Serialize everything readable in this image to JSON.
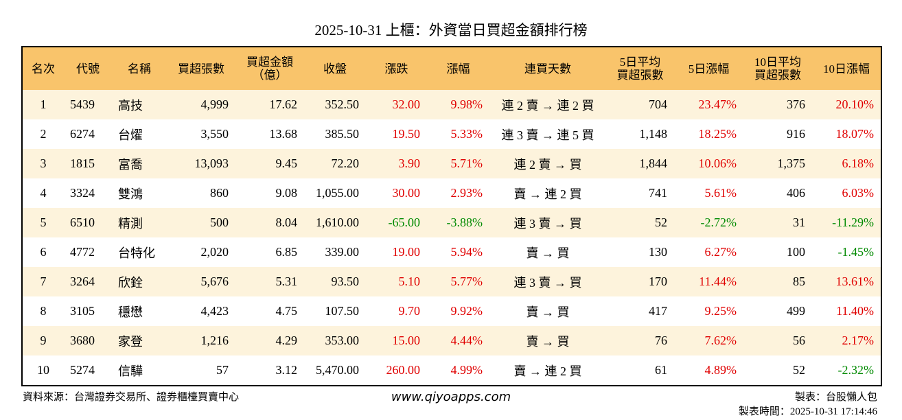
{
  "title": "2025-10-31 上櫃：外資當日買超金額排行榜",
  "colors": {
    "header": "#f9c46b",
    "stripe": "#fdf3dc",
    "up": "#e00000",
    "down": "#008a00"
  },
  "signed_columns": [
    6,
    7,
    10,
    12
  ],
  "table": {
    "headers": [
      "名次",
      "代號",
      "名稱",
      "買超張數",
      [
        "買超金額",
        "（億）"
      ],
      "收盤",
      "漲跌",
      "漲幅",
      "連買天數",
      [
        "5日平均",
        "買超張數"
      ],
      "5日漲幅",
      [
        "10日平均",
        "買超張數"
      ],
      "10日漲幅"
    ],
    "rows": [
      [
        "1",
        "5439",
        "高技",
        "4,999",
        "17.62",
        "352.50",
        "32.00",
        "9.98%",
        "連 2 賣 → 連 2 買",
        "704",
        "23.47%",
        "376",
        "20.10%"
      ],
      [
        "2",
        "6274",
        "台燿",
        "3,550",
        "13.68",
        "385.50",
        "19.50",
        "5.33%",
        "連 3 賣 → 連 5 買",
        "1,148",
        "18.25%",
        "916",
        "18.07%"
      ],
      [
        "3",
        "1815",
        "富喬",
        "13,093",
        "9.45",
        "72.20",
        "3.90",
        "5.71%",
        "連 2 賣 → 買",
        "1,844",
        "10.06%",
        "1,375",
        "6.18%"
      ],
      [
        "4",
        "3324",
        "雙鴻",
        "860",
        "9.08",
        "1,055.00",
        "30.00",
        "2.93%",
        "賣 → 連 2 買",
        "741",
        "5.61%",
        "406",
        "6.03%"
      ],
      [
        "5",
        "6510",
        "精測",
        "500",
        "8.04",
        "1,610.00",
        "-65.00",
        "-3.88%",
        "連 3 賣 → 買",
        "52",
        "-2.72%",
        "31",
        "-11.29%"
      ],
      [
        "6",
        "4772",
        "台特化",
        "2,020",
        "6.85",
        "339.00",
        "19.00",
        "5.94%",
        "賣 → 買",
        "130",
        "6.27%",
        "100",
        "-1.45%"
      ],
      [
        "7",
        "3264",
        "欣銓",
        "5,676",
        "5.31",
        "93.50",
        "5.10",
        "5.77%",
        "連 3 賣 → 買",
        "170",
        "11.44%",
        "85",
        "13.61%"
      ],
      [
        "8",
        "3105",
        "穩懋",
        "4,423",
        "4.75",
        "107.50",
        "9.70",
        "9.92%",
        "賣 → 買",
        "417",
        "9.25%",
        "499",
        "11.40%"
      ],
      [
        "9",
        "3680",
        "家登",
        "1,216",
        "4.29",
        "353.00",
        "15.00",
        "4.44%",
        "賣 → 買",
        "76",
        "7.62%",
        "56",
        "2.17%"
      ],
      [
        "10",
        "5274",
        "信驊",
        "57",
        "3.12",
        "5,470.00",
        "260.00",
        "4.99%",
        "賣 → 連 2 買",
        "61",
        "4.89%",
        "52",
        "-2.32%"
      ]
    ]
  },
  "footer": {
    "source": "資料來源：台灣證券交易所、證券櫃檯買賣中心",
    "site": "www.qiyoapps.com",
    "maker": "製表：台股懶人包",
    "time": "製表時間：2025-10-31 17:14:46"
  }
}
